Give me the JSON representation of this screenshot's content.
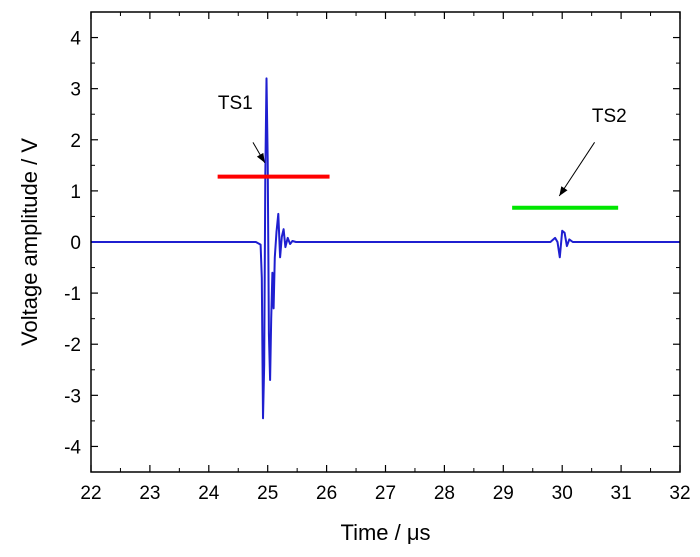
{
  "chart_data": {
    "type": "line",
    "title": "",
    "xlabel": "Time / μs",
    "ylabel": "Voltage amplitude / V",
    "xlim": [
      22,
      32
    ],
    "ylim": [
      -4.5,
      4.5
    ],
    "xticks": [
      "22",
      "23",
      "24",
      "25",
      "26",
      "27",
      "28",
      "29",
      "30",
      "31",
      "32"
    ],
    "yticks": [
      "4",
      "3",
      "2",
      "1",
      "0",
      "-1",
      "-2",
      "-3",
      "-4"
    ],
    "grid": false,
    "line_color": "#1f1fd0",
    "series": [
      {
        "name": "",
        "x": [
          22.0,
          24.8,
          24.88,
          24.9,
          24.92,
          24.94,
          24.96,
          24.98,
          25.0,
          25.02,
          25.04,
          25.06,
          25.08,
          25.1,
          25.12,
          25.15,
          25.18,
          25.21,
          25.24,
          25.27,
          25.3,
          25.34,
          25.38,
          25.42,
          25.48,
          25.55,
          29.8,
          29.88,
          29.92,
          29.96,
          30.0,
          30.04,
          30.08,
          30.12,
          30.18,
          30.25,
          32.0
        ],
        "y": [
          0.0,
          0.0,
          -0.05,
          -0.7,
          -3.45,
          -2.4,
          1.3,
          3.2,
          1.6,
          -1.8,
          -2.7,
          -1.5,
          -0.6,
          -1.3,
          -0.3,
          0.2,
          0.55,
          -0.3,
          0.1,
          0.25,
          -0.1,
          0.08,
          -0.04,
          0.02,
          0.0,
          0.0,
          0.0,
          0.08,
          0.0,
          -0.3,
          0.22,
          0.18,
          -0.08,
          0.05,
          0.0,
          0.0,
          0.0
        ]
      }
    ],
    "annotations": [
      {
        "label": "TS1",
        "color": "#ff0000",
        "x_start": 24.15,
        "x_end": 26.05,
        "y": 1.28,
        "text_x": 24.45,
        "text_y": 2.6,
        "arrow_from": [
          24.75,
          1.95
        ],
        "arrow_to": [
          24.95,
          1.55
        ]
      },
      {
        "label": "TS2",
        "color": "#00e600",
        "x_start": 29.15,
        "x_end": 30.95,
        "y": 0.67,
        "text_x": 30.8,
        "text_y": 2.35,
        "arrow_from": [
          30.55,
          1.95
        ],
        "arrow_to": [
          29.95,
          0.9
        ]
      }
    ]
  }
}
